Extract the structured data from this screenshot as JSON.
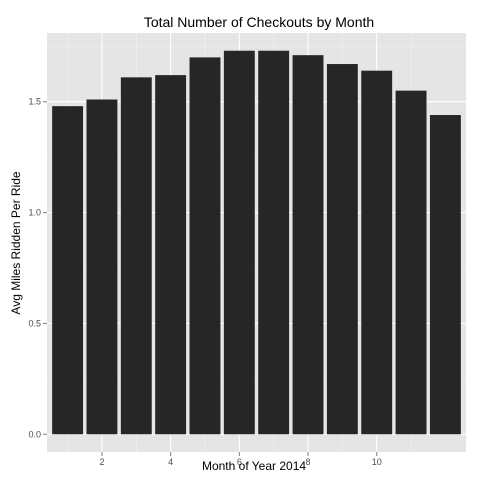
{
  "chart_data": {
    "type": "bar",
    "title": "Total Number of Checkouts by Month",
    "xlabel": "Month of Year 2014",
    "ylabel": "Avg Miles Ridden Per Ride",
    "x": [
      1,
      2,
      3,
      4,
      5,
      6,
      7,
      8,
      9,
      10,
      11,
      12
    ],
    "values": [
      1.48,
      1.51,
      1.61,
      1.62,
      1.7,
      1.73,
      1.73,
      1.71,
      1.67,
      1.64,
      1.55,
      1.44
    ],
    "x_ticks": [
      2,
      4,
      6,
      8,
      10
    ],
    "x_tick_labels": [
      "2",
      "4",
      "6",
      "8",
      "10"
    ],
    "y_ticks": [
      0,
      0.5,
      1.0,
      1.5
    ],
    "y_tick_labels": [
      "0.0",
      "0.5",
      "1.0",
      "1.5"
    ],
    "xlim": [
      0.4,
      12.6
    ],
    "ylim": [
      -0.08,
      1.81
    ],
    "grid": true,
    "colors": {
      "bar": "#262626",
      "panel": "#e5e5e5",
      "grid_major": "#ffffff",
      "grid_minor": "#f2f2f2"
    }
  }
}
